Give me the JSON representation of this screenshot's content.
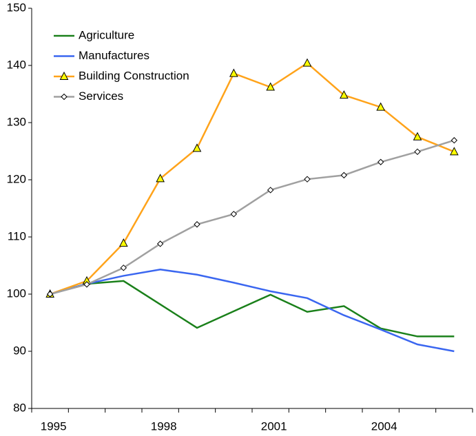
{
  "chart_data": {
    "type": "line",
    "categories": [
      "1995",
      null,
      null,
      "1998",
      null,
      null,
      "2001",
      null,
      null,
      "2004",
      null,
      null
    ],
    "ylim": [
      80,
      150
    ],
    "yticks": [
      80,
      90,
      100,
      110,
      120,
      130,
      140,
      150
    ],
    "legend": "top-left",
    "series": [
      {
        "name": "Agriculture",
        "color": "#1a801a",
        "marker": "none",
        "values": [
          100,
          101.8,
          102.3,
          98.2,
          94.1,
          97,
          99.9,
          96.9,
          97.9,
          94,
          92.6,
          92.6
        ]
      },
      {
        "name": "Manufactures",
        "color": "#3a66f0",
        "marker": "none",
        "values": [
          100,
          101.8,
          103.2,
          104.3,
          103.4,
          102,
          100.5,
          99.3,
          96.3,
          93.8,
          91.2,
          90
        ]
      },
      {
        "name": "Building Construction",
        "color": "#ffa31a",
        "marker": "triangle",
        "values": [
          100,
          102.3,
          108.9,
          120.2,
          125.5,
          138.6,
          136.2,
          140.4,
          134.8,
          132.7,
          127.5,
          124.9
        ]
      },
      {
        "name": "Services",
        "color": "#a0a0a0",
        "marker": "diamond",
        "values": [
          100,
          101.7,
          104.6,
          108.8,
          112.2,
          114,
          118.2,
          120.1,
          120.8,
          123.1,
          124.9,
          126.9
        ]
      }
    ]
  }
}
